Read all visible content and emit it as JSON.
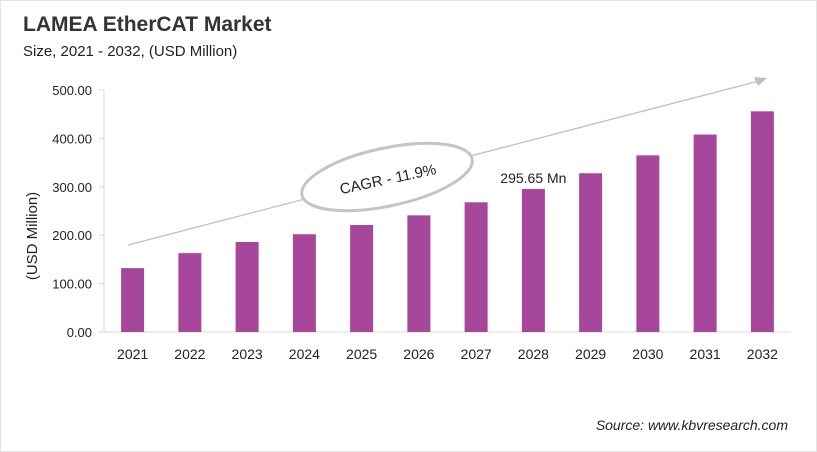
{
  "chart_data": {
    "type": "bar",
    "title": "LAMEA EtherCAT Market",
    "subtitle": "Size, 2021 - 2032, (USD Million)",
    "ylabel": "(USD Million)",
    "xlabel": "",
    "ylim": [
      0,
      500
    ],
    "yticks": [
      "0.00",
      "100.00",
      "200.00",
      "300.00",
      "400.00",
      "500.00"
    ],
    "categories": [
      "2021",
      "2022",
      "2023",
      "2024",
      "2025",
      "2026",
      "2027",
      "2028",
      "2029",
      "2030",
      "2031",
      "2032"
    ],
    "values": [
      132,
      163,
      186,
      202,
      221,
      241,
      268,
      295.65,
      328,
      365,
      408,
      456
    ],
    "bar_color": "#a6479b",
    "annotations": {
      "cagr": "CAGR - 11.9%",
      "data_label": "295.65 Mn"
    },
    "grid": false,
    "source": "Source: www.kbvresearch.com"
  }
}
